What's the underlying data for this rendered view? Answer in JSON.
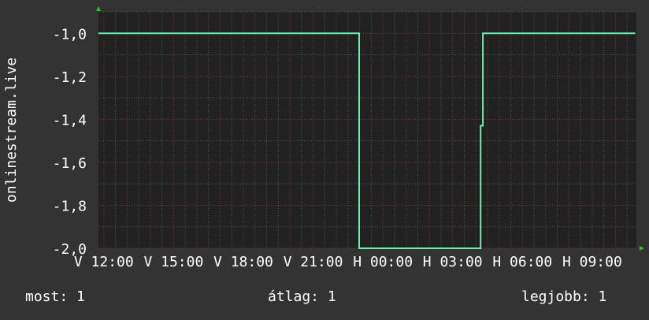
{
  "chart_data": {
    "type": "line",
    "ylabel": "onlinestream.live",
    "ylim": [
      -2.0,
      -0.9
    ],
    "y_ticks": [
      "-1,0",
      "-1,2",
      "-1,4",
      "-1,6",
      "-1,8",
      "-2,0"
    ],
    "y_tick_values": [
      -1.0,
      -1.2,
      -1.4,
      -1.6,
      -1.8,
      -2.0
    ],
    "x_ticks": [
      "V 12:00",
      "V 15:00",
      "V 18:00",
      "V 21:00",
      "H 00:00",
      "H 03:00",
      "H 06:00",
      "H 09:00"
    ],
    "x_tick_hours": [
      12,
      15,
      18,
      21,
      24,
      27,
      30,
      33
    ],
    "xlim_hours": [
      11.77,
      34.9
    ],
    "grid": true,
    "series": [
      {
        "points": [
          {
            "h": 11.77,
            "v": -1.0
          },
          {
            "h": 22.98,
            "v": -1.0
          },
          {
            "h": 22.98,
            "v": -2.0
          },
          {
            "h": 28.2,
            "v": -2.0
          },
          {
            "h": 28.2,
            "v": -1.43
          },
          {
            "h": 28.3,
            "v": -1.43
          },
          {
            "h": 28.3,
            "v": -1.0
          },
          {
            "h": 34.85,
            "v": -1.0
          }
        ]
      }
    ],
    "colors": {
      "background": "#333333",
      "plot": "#212121",
      "line": "#6eecb4",
      "major_grid": "#7a3a3a",
      "minor_grid": "#555555",
      "arrow": "#22cc22"
    }
  },
  "legend": {
    "current": "most: 1",
    "average": "átlag: 1",
    "max": "legjobb: 1"
  }
}
